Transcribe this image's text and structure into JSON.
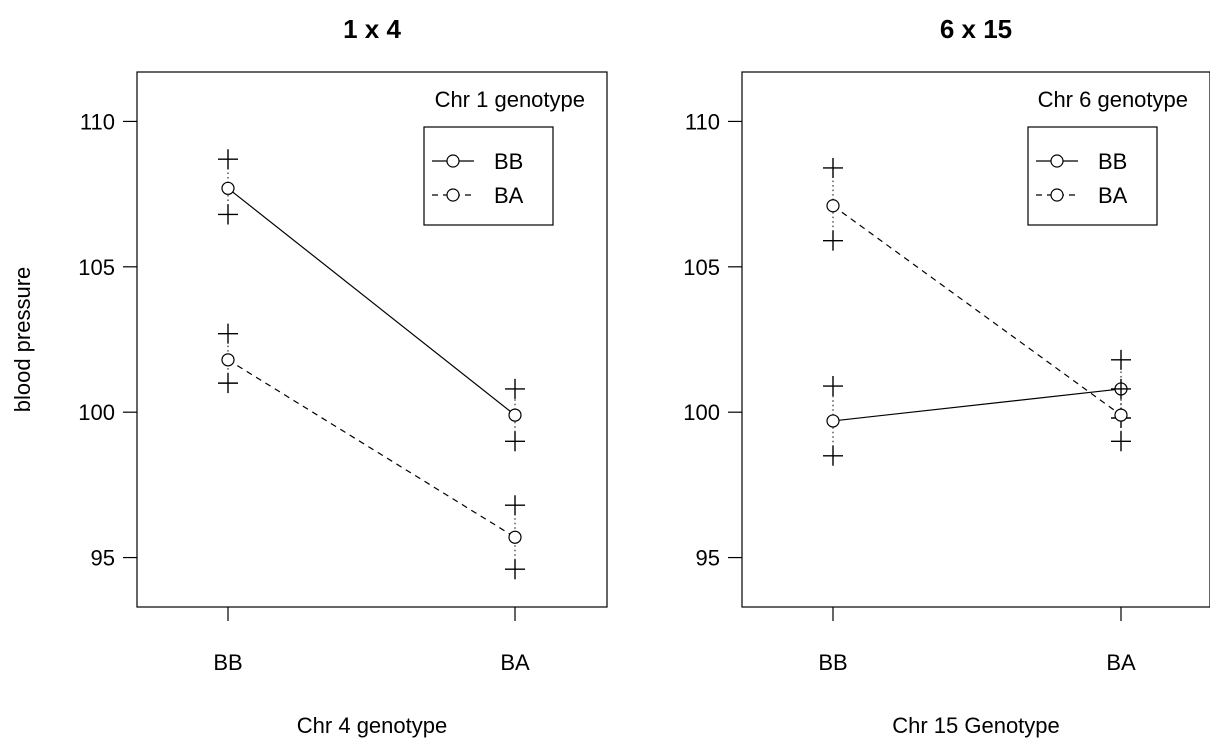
{
  "chart_data": [
    {
      "type": "line",
      "title": "1 x 4",
      "xlabel": "Chr 4 genotype",
      "ylabel": "blood pressure",
      "categories": [
        "BB",
        "BA"
      ],
      "ylim": [
        93.3,
        111.7
      ],
      "yticks": [
        95,
        100,
        105,
        110
      ],
      "legend_title": "Chr 1 genotype",
      "legend_position": "top-right",
      "series": [
        {
          "name": "BB",
          "linestyle": "solid",
          "values": [
            107.7,
            99.9
          ],
          "lower": [
            106.8,
            99.0
          ],
          "upper": [
            108.7,
            100.8
          ]
        },
        {
          "name": "BA",
          "linestyle": "dashed",
          "values": [
            101.8,
            95.7
          ],
          "lower": [
            101.0,
            94.6
          ],
          "upper": [
            102.7,
            96.8
          ]
        }
      ]
    },
    {
      "type": "line",
      "title": "6 x 15",
      "xlabel": "Chr 15 Genotype",
      "ylabel": "",
      "categories": [
        "BB",
        "BA"
      ],
      "ylim": [
        93.3,
        111.7
      ],
      "yticks": [
        95,
        100,
        105,
        110
      ],
      "legend_title": "Chr 6 genotype",
      "legend_position": "top-right",
      "series": [
        {
          "name": "BB",
          "linestyle": "solid",
          "values": [
            99.7,
            100.8
          ],
          "lower": [
            98.5,
            99.8
          ],
          "upper": [
            100.9,
            101.8
          ]
        },
        {
          "name": "BA",
          "linestyle": "dashed",
          "values": [
            107.1,
            99.9
          ],
          "lower": [
            105.9,
            99.0
          ],
          "upper": [
            108.4,
            100.8
          ]
        }
      ]
    }
  ]
}
